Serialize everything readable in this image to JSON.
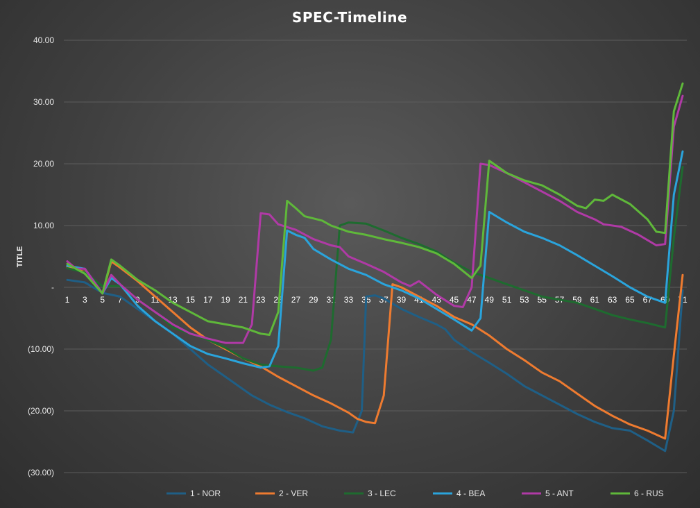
{
  "chart_data": {
    "type": "line",
    "title": "SPEC-Timeline",
    "ylabel": "TITLE",
    "xlabel": "",
    "ylim": [
      -30,
      40
    ],
    "yticks": [
      {
        "value": 40,
        "label": "40.00"
      },
      {
        "value": 30,
        "label": "30.00"
      },
      {
        "value": 20,
        "label": "20.00"
      },
      {
        "value": 10,
        "label": "10.00"
      },
      {
        "value": 0,
        "label": "-"
      },
      {
        "value": -10,
        "label": "(10.00)"
      },
      {
        "value": -20,
        "label": "(20.00)"
      },
      {
        "value": -30,
        "label": "(30.00)"
      }
    ],
    "xlim": [
      1,
      71
    ],
    "xtick_labels": [
      "1",
      "3",
      "5",
      "7",
      "9",
      "11",
      "13",
      "15",
      "17",
      "19",
      "21",
      "23",
      "25",
      "27",
      "29",
      "31",
      "33",
      "35",
      "37",
      "39",
      "41",
      "43",
      "45",
      "47",
      "49",
      "51",
      "53",
      "55",
      "57",
      "59",
      "61",
      "63",
      "65",
      "67",
      "69",
      "71"
    ],
    "grid": true,
    "legend_position": "bottom",
    "series": [
      {
        "name": "1 - NOR",
        "color": "#1f5f86",
        "points": [
          [
            1,
            1.2
          ],
          [
            3,
            0.8
          ],
          [
            5,
            -0.9
          ],
          [
            7,
            -1.5
          ],
          [
            9,
            -3.5
          ],
          [
            11,
            -5.5
          ],
          [
            13,
            -7.5
          ],
          [
            15,
            -10
          ],
          [
            17,
            -12.5
          ],
          [
            19,
            -14.5
          ],
          [
            21,
            -16.5
          ],
          [
            22,
            -17.5
          ],
          [
            24,
            -19
          ],
          [
            26,
            -20.2
          ],
          [
            28,
            -21.2
          ],
          [
            30,
            -22.5
          ],
          [
            32,
            -23.2
          ],
          [
            33.5,
            -23.5
          ],
          [
            34.5,
            -20
          ],
          [
            35,
            -1.5
          ],
          [
            36,
            -1.3
          ],
          [
            37,
            -1.8
          ],
          [
            39,
            -3.5
          ],
          [
            41,
            -4.8
          ],
          [
            43,
            -6
          ],
          [
            44,
            -6.8
          ],
          [
            45,
            -8.5
          ],
          [
            47,
            -10.5
          ],
          [
            49,
            -12.2
          ],
          [
            51,
            -14
          ],
          [
            53,
            -16
          ],
          [
            55,
            -17.5
          ],
          [
            57,
            -19
          ],
          [
            59,
            -20.5
          ],
          [
            61,
            -21.8
          ],
          [
            63,
            -22.8
          ],
          [
            65,
            -23.2
          ],
          [
            67,
            -24.8
          ],
          [
            69,
            -26.5
          ],
          [
            70,
            -20
          ],
          [
            71,
            -0.5
          ]
        ]
      },
      {
        "name": "2 - VER",
        "color": "#ee7b30",
        "points": [
          [
            1,
            3.3
          ],
          [
            3,
            2.5
          ],
          [
            5,
            -1
          ],
          [
            6,
            4.2
          ],
          [
            7,
            3.2
          ],
          [
            9,
            1
          ],
          [
            11,
            -1.5
          ],
          [
            13,
            -4
          ],
          [
            15,
            -6.5
          ],
          [
            17,
            -8.5
          ],
          [
            19,
            -10
          ],
          [
            21,
            -11.5
          ],
          [
            23,
            -12.8
          ],
          [
            25,
            -14.5
          ],
          [
            27,
            -16
          ],
          [
            29,
            -17.5
          ],
          [
            31,
            -18.8
          ],
          [
            33,
            -20.3
          ],
          [
            34,
            -21.3
          ],
          [
            35,
            -21.8
          ],
          [
            36,
            -22
          ],
          [
            37,
            -17.5
          ],
          [
            38,
            0.5
          ],
          [
            39,
            0
          ],
          [
            41,
            -1.5
          ],
          [
            43,
            -3
          ],
          [
            45,
            -4.8
          ],
          [
            47,
            -6
          ],
          [
            49,
            -7.8
          ],
          [
            51,
            -10
          ],
          [
            53,
            -11.8
          ],
          [
            55,
            -13.8
          ],
          [
            57,
            -15.2
          ],
          [
            59,
            -17.2
          ],
          [
            61,
            -19.2
          ],
          [
            63,
            -20.8
          ],
          [
            65,
            -22.2
          ],
          [
            67,
            -23.2
          ],
          [
            69,
            -24.5
          ],
          [
            70,
            -11
          ],
          [
            71,
            2
          ]
        ]
      },
      {
        "name": "3 - LEC",
        "color": "#1e6b2f",
        "points": [
          [
            1,
            3.1
          ],
          [
            3,
            2.4
          ],
          [
            5,
            0.2
          ],
          [
            7,
            0.2
          ],
          [
            9,
            -2
          ],
          [
            11,
            -4
          ],
          [
            13,
            -6.5
          ],
          [
            15,
            -7.5
          ],
          [
            17,
            -8.5
          ],
          [
            19,
            -9.8
          ],
          [
            21,
            -11.5
          ],
          [
            23,
            -12.5
          ],
          [
            25,
            -12.8
          ],
          [
            27,
            -13
          ],
          [
            29,
            -13.5
          ],
          [
            30,
            -13
          ],
          [
            31,
            -8.5
          ],
          [
            32,
            10
          ],
          [
            33,
            10.5
          ],
          [
            35,
            10.3
          ],
          [
            37,
            9.2
          ],
          [
            39,
            8
          ],
          [
            41,
            7
          ],
          [
            43,
            5.8
          ],
          [
            45,
            4
          ],
          [
            47,
            2.5
          ],
          [
            49,
            1.5
          ],
          [
            51,
            0.5
          ],
          [
            53,
            -0.5
          ],
          [
            55,
            -1.5
          ],
          [
            57,
            -2
          ],
          [
            59,
            -2.5
          ],
          [
            61,
            -3.5
          ],
          [
            63,
            -4.5
          ],
          [
            65,
            -5.2
          ],
          [
            67,
            -5.8
          ],
          [
            69,
            -6.5
          ],
          [
            70,
            8
          ],
          [
            71,
            19.5
          ]
        ]
      },
      {
        "name": "4 - BEA",
        "color": "#2aa4dc",
        "points": [
          [
            1,
            3.5
          ],
          [
            3,
            3
          ],
          [
            5,
            -1
          ],
          [
            6,
            1.5
          ],
          [
            7,
            0.5
          ],
          [
            9,
            -3
          ],
          [
            11,
            -5.5
          ],
          [
            13,
            -7.5
          ],
          [
            15,
            -9.5
          ],
          [
            17,
            -10.8
          ],
          [
            19,
            -11.5
          ],
          [
            21,
            -12.3
          ],
          [
            23,
            -13
          ],
          [
            24,
            -12.8
          ],
          [
            25,
            -9.5
          ],
          [
            26,
            9.2
          ],
          [
            27,
            8.5
          ],
          [
            28,
            8
          ],
          [
            29,
            6.2
          ],
          [
            31,
            4.5
          ],
          [
            33,
            3
          ],
          [
            35,
            2
          ],
          [
            37,
            0.5
          ],
          [
            39,
            -0.5
          ],
          [
            41,
            -1.8
          ],
          [
            43,
            -3.5
          ],
          [
            45,
            -5.2
          ],
          [
            47,
            -7
          ],
          [
            48,
            -5
          ],
          [
            49,
            12.2
          ],
          [
            51,
            10.5
          ],
          [
            53,
            9
          ],
          [
            55,
            8
          ],
          [
            57,
            6.8
          ],
          [
            59,
            5.2
          ],
          [
            61,
            3.5
          ],
          [
            63,
            1.8
          ],
          [
            65,
            0
          ],
          [
            67,
            -1.5
          ],
          [
            69,
            -2.5
          ],
          [
            70,
            15
          ],
          [
            71,
            22
          ]
        ]
      },
      {
        "name": "5 - ANT",
        "color": "#b03aa6",
        "points": [
          [
            1,
            4.2
          ],
          [
            2,
            3
          ],
          [
            3,
            3
          ],
          [
            5,
            -1
          ],
          [
            6,
            2
          ],
          [
            7,
            0.5
          ],
          [
            9,
            -2
          ],
          [
            11,
            -4
          ],
          [
            13,
            -6
          ],
          [
            15,
            -7.5
          ],
          [
            17,
            -8.3
          ],
          [
            19,
            -9
          ],
          [
            21,
            -9
          ],
          [
            22,
            -6
          ],
          [
            23,
            12
          ],
          [
            24,
            11.8
          ],
          [
            25,
            10.2
          ],
          [
            27,
            9.3
          ],
          [
            29,
            7.8
          ],
          [
            31,
            6.8
          ],
          [
            32,
            6.5
          ],
          [
            33,
            5
          ],
          [
            35,
            3.8
          ],
          [
            37,
            2.5
          ],
          [
            39,
            0.8
          ],
          [
            40,
            0.2
          ],
          [
            41,
            1
          ],
          [
            43,
            -1.2
          ],
          [
            45,
            -3
          ],
          [
            46,
            -3.2
          ],
          [
            47,
            0
          ],
          [
            48,
            20
          ],
          [
            49,
            19.8
          ],
          [
            51,
            18.5
          ],
          [
            53,
            17
          ],
          [
            55,
            15.5
          ],
          [
            57,
            14
          ],
          [
            59,
            12.2
          ],
          [
            61,
            11
          ],
          [
            62,
            10.2
          ],
          [
            64,
            9.8
          ],
          [
            66,
            8.5
          ],
          [
            68,
            6.8
          ],
          [
            69,
            7
          ],
          [
            70,
            26
          ],
          [
            71,
            31
          ]
        ]
      },
      {
        "name": "6 - RUS",
        "color": "#5fb83a",
        "points": [
          [
            1,
            3.8
          ],
          [
            3,
            2.2
          ],
          [
            5,
            -1
          ],
          [
            6,
            4.5
          ],
          [
            7,
            3.5
          ],
          [
            9,
            1.2
          ],
          [
            11,
            -0.5
          ],
          [
            13,
            -2.5
          ],
          [
            15,
            -4
          ],
          [
            17,
            -5.5
          ],
          [
            19,
            -6
          ],
          [
            21,
            -6.5
          ],
          [
            23,
            -7.5
          ],
          [
            24,
            -7.7
          ],
          [
            25,
            -4
          ],
          [
            26,
            14
          ],
          [
            27,
            12.8
          ],
          [
            28,
            11.5
          ],
          [
            30,
            10.8
          ],
          [
            31,
            10
          ],
          [
            33,
            9
          ],
          [
            35,
            8.5
          ],
          [
            37,
            7.8
          ],
          [
            39,
            7.2
          ],
          [
            41,
            6.5
          ],
          [
            43,
            5.5
          ],
          [
            45,
            3.8
          ],
          [
            47,
            1.5
          ],
          [
            48,
            3.5
          ],
          [
            49,
            20.5
          ],
          [
            51,
            18.5
          ],
          [
            53,
            17.3
          ],
          [
            55,
            16.5
          ],
          [
            57,
            15
          ],
          [
            59,
            13.2
          ],
          [
            60,
            12.8
          ],
          [
            61,
            14.2
          ],
          [
            62,
            14
          ],
          [
            63,
            15
          ],
          [
            65,
            13.5
          ],
          [
            67,
            11
          ],
          [
            68,
            9
          ],
          [
            69,
            8.8
          ],
          [
            70,
            28.5
          ],
          [
            71,
            33
          ]
        ]
      }
    ]
  }
}
